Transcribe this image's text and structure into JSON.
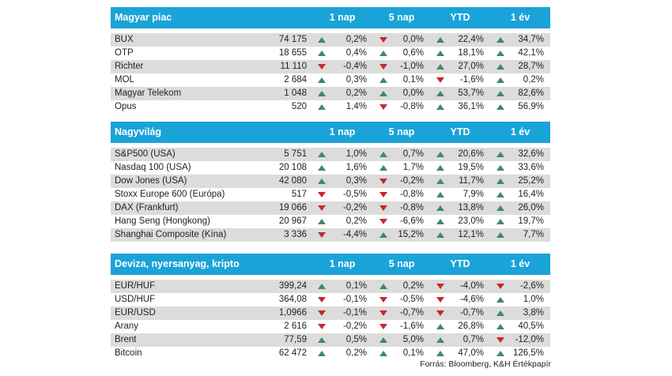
{
  "tables": [
    {
      "title": "Magyar piac",
      "columns": [
        "1 nap",
        "5 nap",
        "YTD",
        "1 év"
      ],
      "rows": [
        {
          "name": "BUX",
          "value": "74 175",
          "changes": [
            {
              "pct": "0,2%",
              "dir": "up"
            },
            {
              "pct": "0,0%",
              "dir": "down"
            },
            {
              "pct": "22,4%",
              "dir": "up"
            },
            {
              "pct": "34,7%",
              "dir": "up"
            }
          ]
        },
        {
          "name": "OTP",
          "value": "18 655",
          "changes": [
            {
              "pct": "0,4%",
              "dir": "up"
            },
            {
              "pct": "0,6%",
              "dir": "up"
            },
            {
              "pct": "18,1%",
              "dir": "up"
            },
            {
              "pct": "42,1%",
              "dir": "up"
            }
          ]
        },
        {
          "name": "Richter",
          "value": "11 110",
          "changes": [
            {
              "pct": "-0,4%",
              "dir": "down"
            },
            {
              "pct": "-1,0%",
              "dir": "down"
            },
            {
              "pct": "27,0%",
              "dir": "up"
            },
            {
              "pct": "28,7%",
              "dir": "up"
            }
          ]
        },
        {
          "name": "MOL",
          "value": "2 684",
          "changes": [
            {
              "pct": "0,3%",
              "dir": "up"
            },
            {
              "pct": "0,1%",
              "dir": "up"
            },
            {
              "pct": "-1,6%",
              "dir": "down"
            },
            {
              "pct": "0,2%",
              "dir": "up"
            }
          ]
        },
        {
          "name": "Magyar Telekom",
          "value": "1 048",
          "changes": [
            {
              "pct": "0,2%",
              "dir": "up"
            },
            {
              "pct": "0,0%",
              "dir": "up"
            },
            {
              "pct": "53,7%",
              "dir": "up"
            },
            {
              "pct": "82,6%",
              "dir": "up"
            }
          ]
        },
        {
          "name": "Opus",
          "value": "520",
          "changes": [
            {
              "pct": "1,4%",
              "dir": "up"
            },
            {
              "pct": "-0,8%",
              "dir": "down"
            },
            {
              "pct": "36,1%",
              "dir": "up"
            },
            {
              "pct": "56,9%",
              "dir": "up"
            }
          ]
        }
      ]
    },
    {
      "title": "Nagyvilág",
      "columns": [
        "1 nap",
        "5 nap",
        "YTD",
        "1 év"
      ],
      "rows": [
        {
          "name": "S&P500 (USA)",
          "value": "5 751",
          "changes": [
            {
              "pct": "1,0%",
              "dir": "up"
            },
            {
              "pct": "0,7%",
              "dir": "up"
            },
            {
              "pct": "20,6%",
              "dir": "up"
            },
            {
              "pct": "32,6%",
              "dir": "up"
            }
          ]
        },
        {
          "name": "Nasdaq 100 (USA)",
          "value": "20 108",
          "changes": [
            {
              "pct": "1,6%",
              "dir": "up"
            },
            {
              "pct": "1,7%",
              "dir": "up"
            },
            {
              "pct": "19,5%",
              "dir": "up"
            },
            {
              "pct": "33,6%",
              "dir": "up"
            }
          ]
        },
        {
          "name": "Dow Jones (USA)",
          "value": "42 080",
          "changes": [
            {
              "pct": "0,3%",
              "dir": "up"
            },
            {
              "pct": "-0,2%",
              "dir": "down"
            },
            {
              "pct": "11,7%",
              "dir": "up"
            },
            {
              "pct": "25,2%",
              "dir": "up"
            }
          ]
        },
        {
          "name": "Stoxx Europe 600 (Európa)",
          "value": "517",
          "changes": [
            {
              "pct": "-0,5%",
              "dir": "down"
            },
            {
              "pct": "-0,8%",
              "dir": "down"
            },
            {
              "pct": "7,9%",
              "dir": "up"
            },
            {
              "pct": "16,4%",
              "dir": "up"
            }
          ]
        },
        {
          "name": "DAX (Frankfurt)",
          "value": "19 066",
          "changes": [
            {
              "pct": "-0,2%",
              "dir": "down"
            },
            {
              "pct": "-0,8%",
              "dir": "down"
            },
            {
              "pct": "13,8%",
              "dir": "up"
            },
            {
              "pct": "26,0%",
              "dir": "up"
            }
          ]
        },
        {
          "name": "Hang Seng (Hongkong)",
          "value": "20 967",
          "changes": [
            {
              "pct": "0,2%",
              "dir": "up"
            },
            {
              "pct": "-6,6%",
              "dir": "down"
            },
            {
              "pct": "23,0%",
              "dir": "up"
            },
            {
              "pct": "19,7%",
              "dir": "up"
            }
          ]
        },
        {
          "name": "Shanghai Composite (Kína)",
          "value": "3 336",
          "changes": [
            {
              "pct": "-4,4%",
              "dir": "down"
            },
            {
              "pct": "15,2%",
              "dir": "up"
            },
            {
              "pct": "12,1%",
              "dir": "up"
            },
            {
              "pct": "7,7%",
              "dir": "up"
            }
          ]
        }
      ]
    },
    {
      "title": "Deviza, nyersanyag, kripto",
      "columns": [
        "1 nap",
        "5 nap",
        "YTD",
        "1 év"
      ],
      "rows": [
        {
          "name": "EUR/HUF",
          "value": "399,24",
          "changes": [
            {
              "pct": "0,1%",
              "dir": "up"
            },
            {
              "pct": "0,2%",
              "dir": "up"
            },
            {
              "pct": "-4,0%",
              "dir": "down"
            },
            {
              "pct": "-2,6%",
              "dir": "down"
            }
          ]
        },
        {
          "name": "USD/HUF",
          "value": "364,08",
          "changes": [
            {
              "pct": "-0,1%",
              "dir": "down"
            },
            {
              "pct": "-0,5%",
              "dir": "down"
            },
            {
              "pct": "-4,6%",
              "dir": "down"
            },
            {
              "pct": "1,0%",
              "dir": "up"
            }
          ]
        },
        {
          "name": "EUR/USD",
          "value": "1,0966",
          "changes": [
            {
              "pct": "-0,1%",
              "dir": "down"
            },
            {
              "pct": "-0,7%",
              "dir": "down"
            },
            {
              "pct": "-0,7%",
              "dir": "down"
            },
            {
              "pct": "3,8%",
              "dir": "up"
            }
          ]
        },
        {
          "name": "Arany",
          "value": "2 616",
          "changes": [
            {
              "pct": "-0,2%",
              "dir": "down"
            },
            {
              "pct": "-1,6%",
              "dir": "down"
            },
            {
              "pct": "26,8%",
              "dir": "up"
            },
            {
              "pct": "40,5%",
              "dir": "up"
            }
          ]
        },
        {
          "name": "Brent",
          "value": "77,59",
          "changes": [
            {
              "pct": "0,5%",
              "dir": "up"
            },
            {
              "pct": "5,0%",
              "dir": "up"
            },
            {
              "pct": "0,7%",
              "dir": "up"
            },
            {
              "pct": "-12,0%",
              "dir": "down"
            }
          ]
        },
        {
          "name": "Bitcoin",
          "value": "62 472",
          "changes": [
            {
              "pct": "0,2%",
              "dir": "up"
            },
            {
              "pct": "0,1%",
              "dir": "up"
            },
            {
              "pct": "47,0%",
              "dir": "up"
            },
            {
              "pct": "126,5%",
              "dir": "up"
            }
          ]
        }
      ]
    }
  ],
  "source": "Forrás: Bloomberg, K&H Értékpapír",
  "colors": {
    "header_bg": "#1aa3d8",
    "stripe": "#dcdcdc",
    "up": "#3d8b64",
    "down": "#c8282d"
  },
  "icons": {
    "up": "triangle-up-icon",
    "down": "triangle-down-icon"
  }
}
